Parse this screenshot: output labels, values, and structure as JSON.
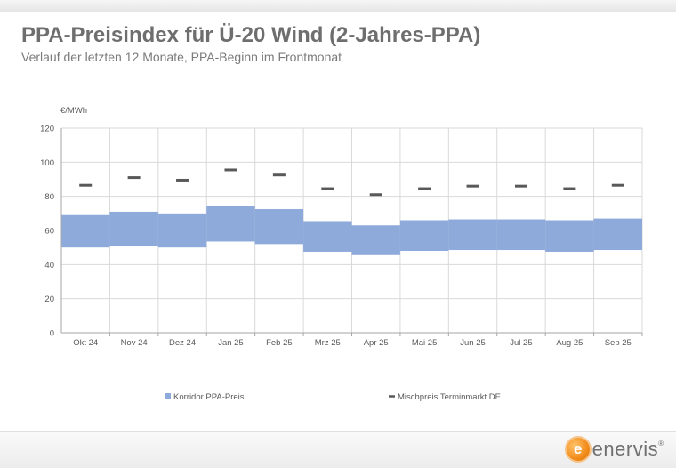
{
  "header": {
    "title": "PPA-Preisindex für Ü-20 Wind (2-Jahres-PPA)",
    "subtitle": "Verlauf der letzten 12 Monate, PPA-Beginn im Frontmonat"
  },
  "branding": {
    "logo_text": "enervis",
    "logo_mark": "e",
    "reg_mark": "®"
  },
  "colors": {
    "corridor": "#8eaadb",
    "marker": "#595959",
    "grid": "#d9d9d9",
    "text": "#595959"
  },
  "chart_data": {
    "type": "bar",
    "unit_label": "€/MWh",
    "ylim": [
      0,
      120
    ],
    "yticks": [
      0,
      20,
      40,
      60,
      80,
      100,
      120
    ],
    "grid": true,
    "legend_position": "bottom",
    "categories": [
      "Okt 24",
      "Nov 24",
      "Dez 24",
      "Jan 25",
      "Feb 25",
      "Mrz 25",
      "Apr 25",
      "Mai 25",
      "Jun 25",
      "Jul 25",
      "Aug 25",
      "Sep 25"
    ],
    "series": [
      {
        "name": "Korridor PPA-Preis",
        "kind": "range",
        "low": [
          50.0,
          51.0,
          50.0,
          53.5,
          52.0,
          47.5,
          45.5,
          48.0,
          48.5,
          48.5,
          47.5,
          48.5
        ],
        "high": [
          69.0,
          71.0,
          70.0,
          74.5,
          72.5,
          65.5,
          63.0,
          66.0,
          66.5,
          66.5,
          66.0,
          67.0
        ]
      },
      {
        "name": "Mischpreis Terminmarkt DE",
        "kind": "marker",
        "values": [
          86.5,
          91.0,
          89.5,
          95.5,
          92.5,
          84.5,
          81.0,
          84.5,
          86.0,
          86.0,
          84.5,
          86.5
        ]
      }
    ]
  }
}
